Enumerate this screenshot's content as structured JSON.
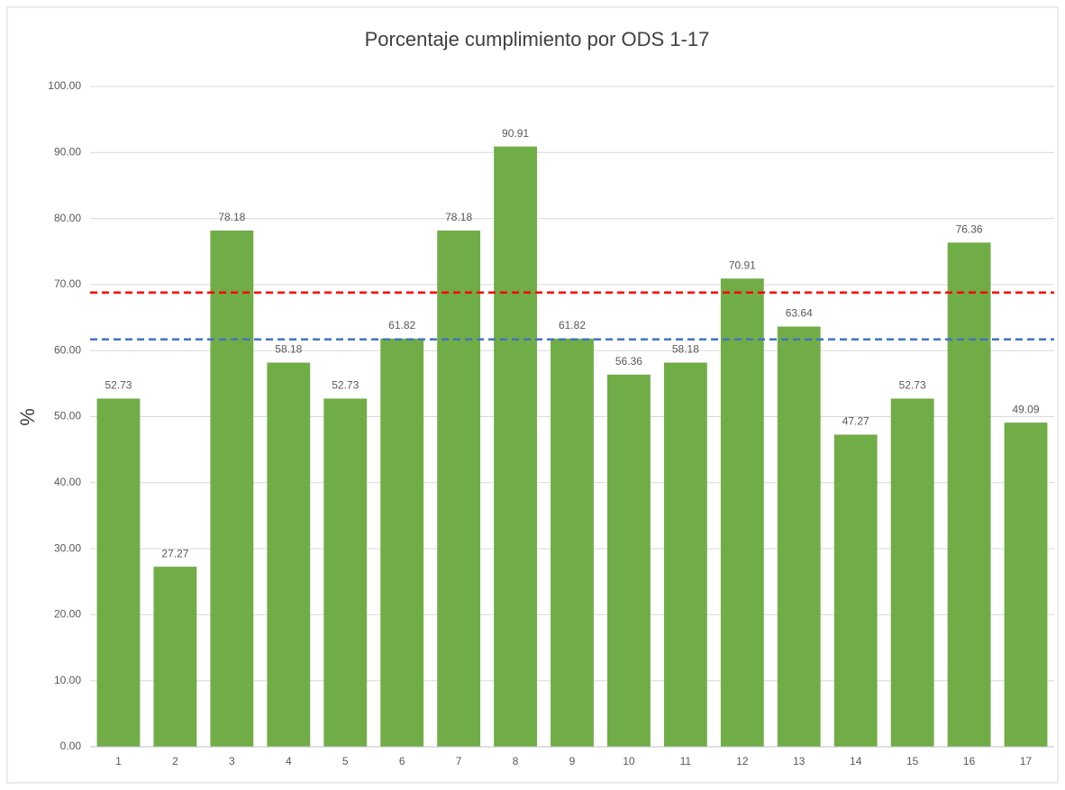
{
  "chart_data": {
    "type": "bar",
    "title": "Porcentaje  cumplimiento por ODS 1-17",
    "y_label": "%",
    "categories": [
      "1",
      "2",
      "3",
      "4",
      "5",
      "6",
      "7",
      "8",
      "9",
      "10",
      "11",
      "12",
      "13",
      "14",
      "15",
      "16",
      "17"
    ],
    "values": [
      52.73,
      27.27,
      78.18,
      58.18,
      52.73,
      61.82,
      78.18,
      90.91,
      61.82,
      56.36,
      58.18,
      70.91,
      63.64,
      47.27,
      52.73,
      76.36,
      49.09
    ],
    "color": "#70ad47",
    "ylim": [
      0,
      100
    ],
    "yticks": [
      {
        "value": 0,
        "label": "0.00"
      },
      {
        "value": 10,
        "label": "10.00"
      },
      {
        "value": 20,
        "label": "20.00"
      },
      {
        "value": 30,
        "label": "30.00"
      },
      {
        "value": 40,
        "label": "40.00"
      },
      {
        "value": 50,
        "label": "50.00"
      },
      {
        "value": 60,
        "label": "60.00"
      },
      {
        "value": 70,
        "label": "70.00"
      },
      {
        "value": 80,
        "label": "80.00"
      },
      {
        "value": 90,
        "label": "90.00"
      },
      {
        "value": 100,
        "label": "100.00"
      }
    ],
    "grid": true,
    "reference_lines": [
      {
        "value": 68.8,
        "color": "#ff0000"
      },
      {
        "value": 61.7,
        "color": "#4472c4"
      }
    ]
  }
}
